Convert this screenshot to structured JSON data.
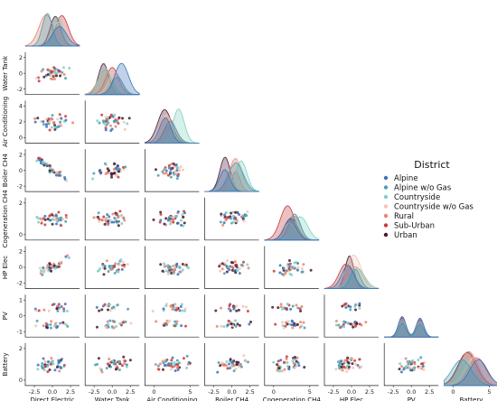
{
  "chart_data": {
    "type": "scatter",
    "variables": [
      "Direct Electric",
      "Water Tank",
      "Air Conditioning",
      "Boiler CH4",
      "Cogeneration CH4",
      "HP Elec",
      "PV",
      "Battery"
    ],
    "x_ticks": {
      "Direct Electric": [
        "-2.5",
        "0.0",
        "2.5"
      ],
      "Water Tank": [
        "-2.5",
        "0.0",
        "2.5"
      ],
      "Air Conditioning": [
        "0",
        "5"
      ],
      "Boiler CH4": [
        "-2.5",
        "0.0",
        "2.5"
      ],
      "Cogeneration CH4": [
        "0",
        "5"
      ],
      "HP Elec": [
        "-2.5",
        "0.0",
        "2.5"
      ],
      "PV": [
        "-2.5",
        "0.0",
        "2.5"
      ],
      "Battery": [
        "0",
        "5"
      ]
    },
    "y_ticks": {
      "Water Tank": [
        "2",
        "0",
        "-2"
      ],
      "Air Conditioning": [
        "4",
        "2",
        "0"
      ],
      "Boiler CH4": [
        "2",
        "0",
        "-2"
      ],
      "Cogeneration CH4": [
        "2",
        "0"
      ],
      "HP Elec": [
        "2",
        "0",
        "-2"
      ],
      "PV": [
        "1",
        "0",
        "-1"
      ],
      "Battery": [
        "2",
        "0"
      ]
    },
    "legend": {
      "title": "District",
      "entries": [
        {
          "name": "Alpine",
          "color": "#3b73b9"
        },
        {
          "name": "Alpine w/o Gas",
          "color": "#4a9fb5"
        },
        {
          "name": "Countryside",
          "color": "#7fd0c2"
        },
        {
          "name": "Countryside w/o Gas",
          "color": "#f3c4b4"
        },
        {
          "name": "Rural",
          "color": "#e88470"
        },
        {
          "name": "Sub-Urban",
          "color": "#c43b3b"
        },
        {
          "name": "Urban",
          "color": "#4a1a2e"
        }
      ],
      "position": "right"
    },
    "diagonal": "kde",
    "off_diagonal": "scatter",
    "grid": false
  }
}
